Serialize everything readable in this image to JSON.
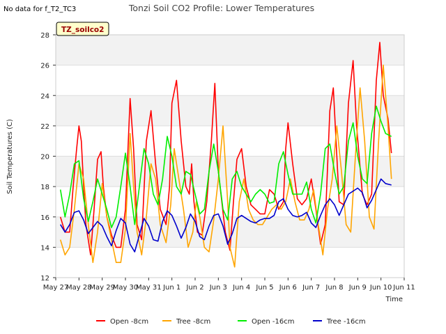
{
  "note": "No data for f_T2_TC3",
  "chart_data": {
    "type": "line",
    "title": "Tonzi Soil CO2 Profile: Lower Temperatures",
    "xlabel": "Time",
    "ylabel": "Soil Temperatures (C)",
    "tag_label": "TZ_soilco2",
    "ylim": [
      12,
      28
    ],
    "yticks": [
      12,
      14,
      16,
      18,
      20,
      22,
      24,
      26,
      28
    ],
    "xlim": [
      0,
      15
    ],
    "xtick_labels": [
      "May 27",
      "May 28",
      "May 29",
      "May 30",
      "May 31",
      "Jun 1",
      "Jun 2",
      "Jun 3",
      "Jun 4",
      "Jun 5",
      "Jun 6",
      "Jun 7",
      "Jun 8",
      "Jun 9",
      "Jun 10",
      "Jun 11"
    ],
    "grid": true,
    "legend_position": "bottom",
    "series": [
      {
        "name": "Open -8cm",
        "color": "#ff0000",
        "x": [
          0.2,
          0.4,
          0.6,
          0.75,
          0.9,
          1.0,
          1.1,
          1.2,
          1.3,
          1.5,
          1.65,
          1.8,
          1.95,
          2.05,
          2.2,
          2.4,
          2.6,
          2.8,
          3.0,
          3.2,
          3.35,
          3.5,
          3.7,
          3.9,
          4.1,
          4.3,
          4.5,
          4.75,
          4.9,
          5.0,
          5.2,
          5.4,
          5.6,
          5.75,
          5.85,
          5.95,
          6.1,
          6.3,
          6.5,
          6.7,
          6.85,
          7.0,
          7.3,
          7.5,
          7.65,
          7.8,
          8.0,
          8.2,
          8.4,
          8.6,
          8.8,
          9.0,
          9.2,
          9.4,
          9.6,
          9.8,
          9.9,
          10.0,
          10.2,
          10.4,
          10.6,
          10.8,
          11.0,
          11.2,
          11.4,
          11.6,
          11.8,
          11.95,
          12.2,
          12.4,
          12.6,
          12.8,
          12.95,
          13.2,
          13.4,
          13.6,
          13.8,
          13.95,
          14.1,
          14.3,
          14.45
        ],
        "values": [
          16,
          15,
          15,
          18,
          20.5,
          22,
          21,
          18,
          15.5,
          13.5,
          16.5,
          19.8,
          20.3,
          18,
          16,
          14.8,
          14,
          14,
          16.5,
          23.8,
          20.5,
          15.5,
          14.5,
          21,
          23,
          19.5,
          16.5,
          15.5,
          18,
          23.5,
          25,
          21,
          18,
          17.5,
          19.5,
          17,
          15,
          14.8,
          17,
          21,
          24.8,
          19,
          15,
          13.8,
          17,
          19.8,
          20.5,
          18,
          16.8,
          16.5,
          16.2,
          16.2,
          17.8,
          17.5,
          16.5,
          17,
          20.5,
          22.2,
          19.5,
          17.2,
          16.8,
          17.2,
          18.5,
          16.5,
          14.2,
          15.5,
          23,
          24.5,
          17,
          16.8,
          23.5,
          26.3,
          22,
          17.5,
          16.8,
          17.5,
          25,
          27.5,
          24,
          22.5,
          20.2
        ]
      },
      {
        "name": "Tree -8cm",
        "color": "#ffa500",
        "x": [
          0.2,
          0.4,
          0.6,
          0.8,
          1.0,
          1.2,
          1.4,
          1.6,
          1.8,
          2.0,
          2.2,
          2.4,
          2.6,
          2.8,
          3.0,
          3.2,
          3.35,
          3.5,
          3.7,
          3.9,
          4.1,
          4.3,
          4.5,
          4.75,
          4.95,
          5.1,
          5.3,
          5.5,
          5.7,
          5.9,
          6.05,
          6.2,
          6.4,
          6.6,
          6.8,
          7.0,
          7.2,
          7.4,
          7.5,
          7.7,
          7.9,
          8.1,
          8.3,
          8.5,
          8.7,
          8.9,
          9.1,
          9.3,
          9.5,
          9.7,
          9.9,
          10.1,
          10.3,
          10.5,
          10.7,
          10.9,
          11.1,
          11.3,
          11.5,
          11.7,
          11.9,
          12.1,
          12.3,
          12.5,
          12.7,
          12.9,
          13.1,
          13.3,
          13.5,
          13.7,
          13.9,
          14.1,
          14.3,
          14.45
        ],
        "values": [
          14.5,
          13.5,
          14,
          16.5,
          19.5,
          18.5,
          15.5,
          13,
          15,
          18.2,
          16,
          14.5,
          13,
          13,
          15.2,
          21.5,
          18,
          15,
          13.5,
          16,
          19.5,
          18.5,
          15.5,
          14.3,
          16.8,
          20.5,
          18.5,
          16.5,
          14,
          15,
          17,
          16,
          14,
          13.7,
          15.8,
          18.5,
          22,
          17,
          14,
          12.7,
          17,
          18.5,
          16.5,
          15.8,
          15.5,
          15.5,
          16,
          16.5,
          16.8,
          16.5,
          17,
          18.5,
          17,
          15.8,
          15.8,
          16.5,
          17.8,
          15.5,
          13.5,
          16.5,
          18.5,
          22,
          19,
          15.5,
          15,
          20,
          24.5,
          21,
          16,
          15.2,
          21,
          26,
          22,
          18.5
        ]
      },
      {
        "name": "Open -16cm",
        "color": "#00ee00",
        "x": [
          0.2,
          0.4,
          0.6,
          0.8,
          1.0,
          1.2,
          1.4,
          1.6,
          1.8,
          2.0,
          2.2,
          2.4,
          2.6,
          2.8,
          3.0,
          3.2,
          3.4,
          3.6,
          3.8,
          4.0,
          4.2,
          4.4,
          4.6,
          4.8,
          5.0,
          5.2,
          5.4,
          5.6,
          5.8,
          6.0,
          6.2,
          6.4,
          6.6,
          6.8,
          7.0,
          7.2,
          7.4,
          7.6,
          7.8,
          8.0,
          8.2,
          8.4,
          8.6,
          8.8,
          9.0,
          9.2,
          9.4,
          9.6,
          9.8,
          10.0,
          10.2,
          10.4,
          10.6,
          10.8,
          11.0,
          11.2,
          11.4,
          11.6,
          11.8,
          12.0,
          12.2,
          12.4,
          12.6,
          12.8,
          13.0,
          13.2,
          13.4,
          13.6,
          13.8,
          14.0,
          14.2,
          14.45
        ],
        "values": [
          17.8,
          16,
          17.5,
          19.5,
          19.7,
          17.2,
          15.7,
          17,
          18.5,
          17.5,
          16.5,
          15.3,
          16,
          18,
          20.2,
          18,
          15.5,
          18,
          20.5,
          19.5,
          17.5,
          16.8,
          18.5,
          21.3,
          20,
          18,
          17.5,
          19,
          18.8,
          17.5,
          16.2,
          16.5,
          19,
          20.8,
          19,
          16.5,
          15.8,
          18.5,
          19,
          18,
          17.5,
          17,
          17.5,
          17.8,
          17.5,
          16.9,
          17,
          19.5,
          20.3,
          18.8,
          17.5,
          17.5,
          17.5,
          18.3,
          16.5,
          15.6,
          17.5,
          20.5,
          20.8,
          19,
          17.5,
          18,
          21,
          22.2,
          20,
          18.5,
          18.2,
          21.5,
          23.3,
          22.3,
          21.5,
          21.3
        ]
      },
      {
        "name": "Tree -16cm",
        "color": "#0000cc",
        "x": [
          0.2,
          0.4,
          0.6,
          0.8,
          1.0,
          1.2,
          1.4,
          1.6,
          1.8,
          2.0,
          2.2,
          2.4,
          2.6,
          2.8,
          3.0,
          3.2,
          3.4,
          3.6,
          3.8,
          4.0,
          4.2,
          4.4,
          4.6,
          4.8,
          5.0,
          5.2,
          5.4,
          5.6,
          5.8,
          6.0,
          6.2,
          6.4,
          6.6,
          6.8,
          7.0,
          7.2,
          7.4,
          7.6,
          7.8,
          8.0,
          8.2,
          8.4,
          8.6,
          8.8,
          9.0,
          9.2,
          9.4,
          9.6,
          9.8,
          10.0,
          10.2,
          10.4,
          10.6,
          10.8,
          11.0,
          11.2,
          11.4,
          11.6,
          11.8,
          12.0,
          12.2,
          12.4,
          12.6,
          12.8,
          13.0,
          13.2,
          13.4,
          13.6,
          13.8,
          14.0,
          14.2,
          14.45
        ],
        "values": [
          15.5,
          15,
          15.5,
          16.3,
          16.4,
          15.8,
          14.9,
          15.3,
          15.7,
          15.4,
          14.7,
          14.1,
          15.1,
          15.9,
          15.6,
          14.2,
          13.7,
          14.8,
          15.9,
          15.4,
          14.5,
          14.4,
          15.7,
          16.4,
          16.1,
          15.4,
          14.6,
          15.3,
          16.2,
          15.7,
          14.7,
          14.5,
          15.4,
          16.1,
          16.2,
          15.4,
          14.2,
          14.9,
          15.9,
          16.1,
          15.9,
          15.7,
          15.6,
          15.8,
          15.9,
          15.9,
          16.1,
          17,
          17.2,
          16.5,
          16.1,
          16,
          16.1,
          16.3,
          15.6,
          15.3,
          16.1,
          16.8,
          17.2,
          16.8,
          16.1,
          16.8,
          17.5,
          17.7,
          17.9,
          17.6,
          16.6,
          17.1,
          17.8,
          18.5,
          18.2,
          18.1
        ]
      }
    ]
  }
}
